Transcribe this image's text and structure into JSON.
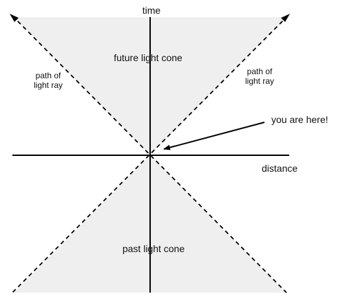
{
  "labels": {
    "time_axis": "time",
    "distance_axis": "distance",
    "future_cone": "future light cone",
    "past_cone": "past light cone",
    "light_ray_left_line1": "path of",
    "light_ray_left_line2": "light ray",
    "light_ray_right_line1": "path of",
    "light_ray_right_line2": "light ray",
    "here_marker": "you are here!"
  },
  "colors": {
    "cone_fill": "#efefef",
    "line": "#000000",
    "text": "#111111"
  }
}
